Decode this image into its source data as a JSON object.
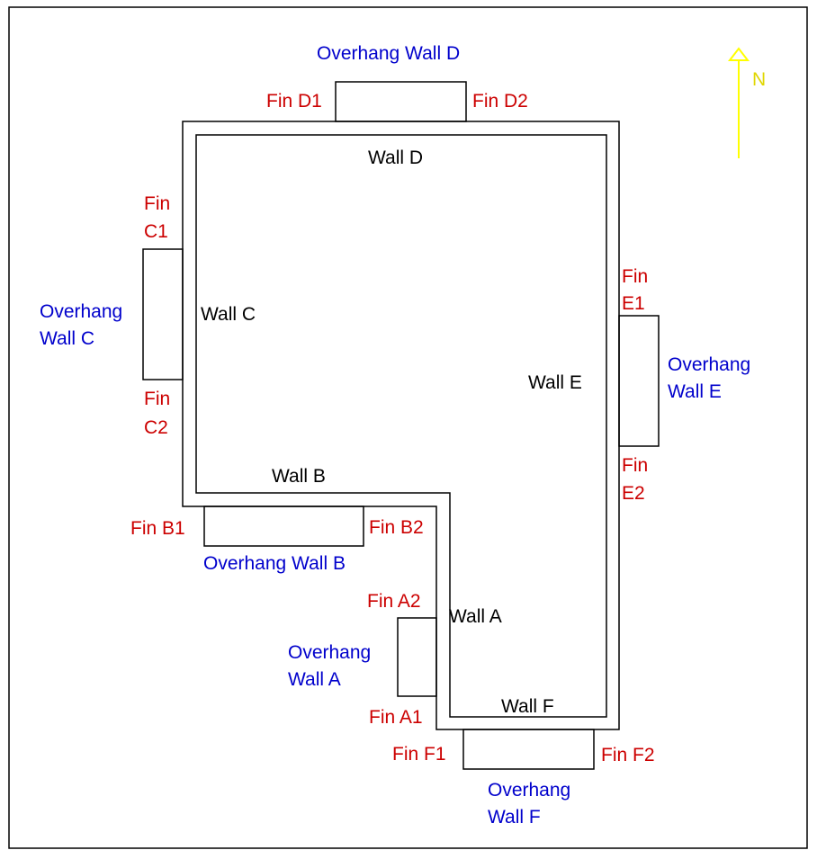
{
  "colors": {
    "wall_label": "#000000",
    "fin_label": "#cc0000",
    "overhang_label": "#0000cc",
    "north_arrow": "#ffff00"
  },
  "north": {
    "label": "N",
    "icon": "north-arrow-icon"
  },
  "walls": {
    "A": "Wall A",
    "B": "Wall B",
    "C": "Wall C",
    "D": "Wall D",
    "E": "Wall E",
    "F": "Wall F"
  },
  "overhangs": {
    "A": {
      "line1": "Overhang",
      "line2": "Wall A"
    },
    "B": {
      "line1": "Overhang Wall B"
    },
    "C": {
      "line1": "Overhang",
      "line2": "Wall C"
    },
    "D": {
      "line1": "Overhang Wall D"
    },
    "E": {
      "line1": "Overhang",
      "line2": "Wall E"
    },
    "F": {
      "line1": "Overhang",
      "line2": "Wall F"
    }
  },
  "fins": {
    "A1": "Fin A1",
    "A2": "Fin A2",
    "B1": "Fin B1",
    "B2": "Fin B2",
    "C1": {
      "line1": "Fin",
      "line2": "C1"
    },
    "C2": {
      "line1": "Fin",
      "line2": "C2"
    },
    "D1": "Fin D1",
    "D2": "Fin D2",
    "E1": {
      "line1": "Fin",
      "line2": "E1"
    },
    "E2": {
      "line1": "Fin",
      "line2": "E2"
    },
    "F1": "Fin F1",
    "F2": "Fin F2"
  }
}
